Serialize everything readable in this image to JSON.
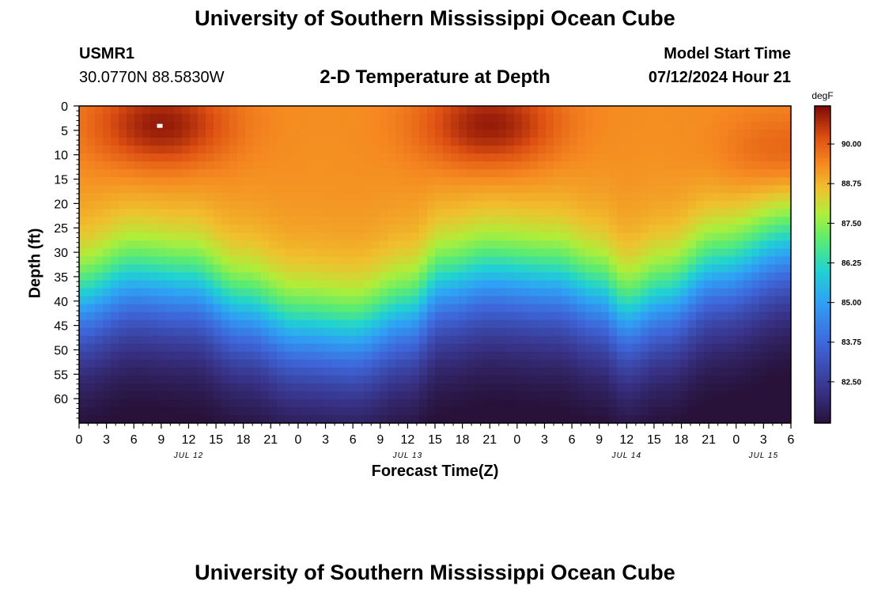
{
  "page": {
    "title_top": "University of Southern Mississippi Ocean Cube",
    "title_bottom": "University of Southern Mississippi Ocean Cube",
    "station_id": "USMR1",
    "station_coords": "30.0770N  88.5830W",
    "chart_title": "2-D Temperature at Depth",
    "model_label": "Model Start Time",
    "model_time": "07/12/2024 Hour 21"
  },
  "chart_data": {
    "type": "heatmap",
    "title": "2-D Temperature at Depth",
    "xlabel": "Forecast Time(Z)",
    "ylabel": "Depth (ft)",
    "x_range_hours": [
      0,
      78
    ],
    "x_ticks": [
      "0",
      "3",
      "6",
      "9",
      "12",
      "15",
      "18",
      "21",
      "0",
      "3",
      "6",
      "9",
      "12",
      "15",
      "18",
      "21",
      "0",
      "3",
      "6",
      "9",
      "12",
      "15",
      "18",
      "21",
      "0",
      "3",
      "6"
    ],
    "date_labels": [
      {
        "label": "JUL 12",
        "hour": 12
      },
      {
        "label": "JUL 13",
        "hour": 36
      },
      {
        "label": "JUL 14",
        "hour": 60
      },
      {
        "label": "JUL 15",
        "hour": 75
      }
    ],
    "ylim": [
      0,
      65
    ],
    "y_ticks": [
      0,
      5,
      10,
      15,
      20,
      25,
      30,
      35,
      40,
      45,
      50,
      55,
      60
    ],
    "colorbar": {
      "units": "degF",
      "min": 81.2,
      "max": 91.2,
      "ticks": [
        "90.00",
        "88.75",
        "87.50",
        "86.25",
        "85.00",
        "83.75",
        "82.50"
      ]
    },
    "thermocline_depth_ft": [
      {
        "hour": 0,
        "depth": 40
      },
      {
        "hour": 6,
        "depth": 36
      },
      {
        "hour": 12,
        "depth": 37
      },
      {
        "hour": 18,
        "depth": 42
      },
      {
        "hour": 24,
        "depth": 46
      },
      {
        "hour": 30,
        "depth": 47
      },
      {
        "hour": 36,
        "depth": 43
      },
      {
        "hour": 40,
        "depth": 37
      },
      {
        "hour": 45,
        "depth": 35
      },
      {
        "hour": 52,
        "depth": 36
      },
      {
        "hour": 57,
        "depth": 39
      },
      {
        "hour": 60,
        "depth": 43
      },
      {
        "hour": 64,
        "depth": 40
      },
      {
        "hour": 70,
        "depth": 34
      },
      {
        "hour": 78,
        "depth": 29
      }
    ],
    "surface_warm_cores": [
      {
        "hour": 9,
        "depth": 4,
        "temp": 91.0
      },
      {
        "hour": 45,
        "depth": 4,
        "temp": 91.0
      },
      {
        "hour": 78,
        "depth": 10,
        "temp": 90.2
      }
    ],
    "surface_temp_degF": 89.3,
    "bottom_temp_degF": 81.6
  }
}
